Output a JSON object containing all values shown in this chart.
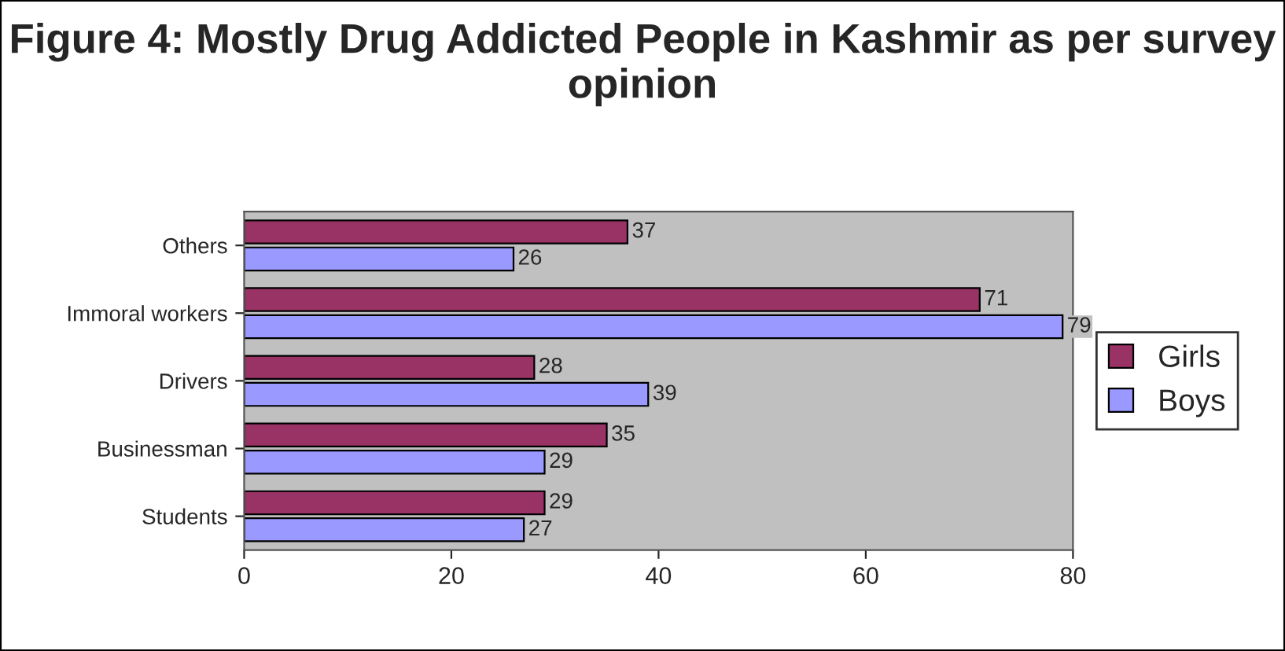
{
  "chart_data": {
    "type": "bar",
    "orientation": "horizontal",
    "title": "Figure 4: Mostly Drug Addicted People in Kashmir as per survey opinion",
    "categories": [
      "Others",
      "Immoral workers",
      "Drivers",
      "Businessman",
      "Students"
    ],
    "series": [
      {
        "name": "Girls",
        "color": "#993366",
        "values": [
          37,
          71,
          28,
          35,
          29
        ]
      },
      {
        "name": "Boys",
        "color": "#9999ff",
        "values": [
          26,
          79,
          39,
          29,
          27
        ]
      }
    ],
    "xlim": [
      0,
      80
    ],
    "xticks": [
      0,
      20,
      40,
      60,
      80
    ],
    "grid": false,
    "legend": "right",
    "data_labels": true
  }
}
